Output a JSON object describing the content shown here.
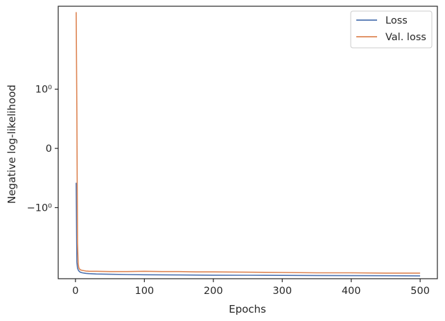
{
  "chart_data": {
    "type": "line",
    "title": "",
    "xlabel": "Epochs",
    "ylabel": "Negative log-likelihood",
    "yscale": "symlog",
    "xlim": [
      -25,
      525
    ],
    "ylim": [
      -2.2,
      2.4
    ],
    "xticks": [
      0,
      100,
      200,
      300,
      400,
      500
    ],
    "xtick_labels": [
      "0",
      "100",
      "200",
      "300",
      "400",
      "500"
    ],
    "yticks": [
      1,
      0,
      -1
    ],
    "ytick_labels": [
      "10⁰",
      "0",
      "−10⁰"
    ],
    "legend": {
      "position": "top-right",
      "entries": [
        "Loss",
        "Val. loss"
      ]
    },
    "grid": false,
    "series": [
      {
        "name": "Loss",
        "color": "#4c72b0",
        "x": [
          1,
          2,
          3,
          4,
          5,
          7,
          10,
          15,
          20,
          30,
          50,
          75,
          100,
          150,
          200,
          250,
          300,
          350,
          400,
          450,
          500
        ],
        "y": [
          -0.58,
          -1.92,
          -2.02,
          -2.05,
          -2.07,
          -2.09,
          -2.1,
          -2.11,
          -2.115,
          -2.12,
          -2.125,
          -2.13,
          -2.133,
          -2.137,
          -2.14,
          -2.142,
          -2.144,
          -2.146,
          -2.148,
          -2.15,
          -2.152
        ]
      },
      {
        "name": "Val. loss",
        "color": "#dd8452",
        "x": [
          1,
          2,
          3,
          4,
          5,
          7,
          10,
          15,
          20,
          30,
          50,
          75,
          100,
          125,
          150,
          175,
          200,
          250,
          300,
          350,
          400,
          450,
          500
        ],
        "y": [
          2.3,
          0.6,
          -1.6,
          -1.95,
          -2.02,
          -2.05,
          -2.06,
          -2.07,
          -2.075,
          -2.075,
          -2.08,
          -2.08,
          -2.075,
          -2.08,
          -2.08,
          -2.085,
          -2.085,
          -2.09,
          -2.095,
          -2.1,
          -2.1,
          -2.105,
          -2.105
        ]
      }
    ]
  }
}
